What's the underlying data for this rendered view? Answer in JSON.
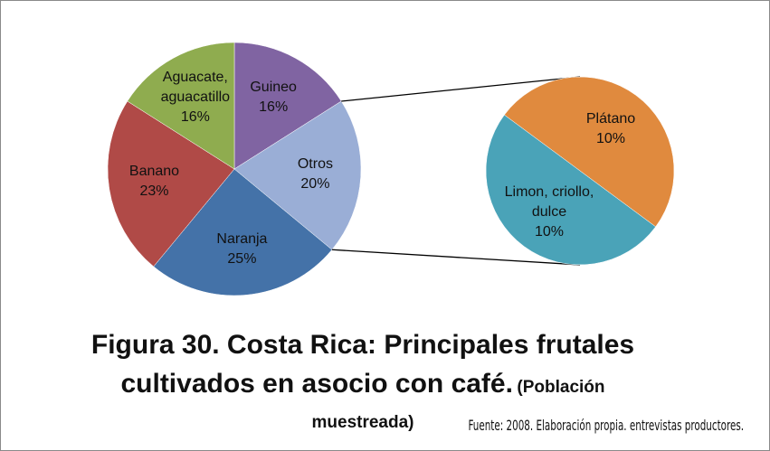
{
  "chart_data": {
    "type": "pie",
    "title": "Figura 30. Costa Rica: Principales frutales cultivados en asocio con café.",
    "subtitle": "(Población muestreada)",
    "source": "Fuente: 2008. Elaboración propia. entrevistas productores.",
    "categories": [
      "Guineo",
      "Otros",
      "Naranja",
      "Banano",
      "Aguacate, aguacatillo"
    ],
    "values": [
      16,
      20,
      25,
      23,
      16
    ],
    "value_labels": [
      "16%",
      "20%",
      "25%",
      "23%",
      "16%"
    ],
    "colors": [
      "#8064a2",
      "#9aaed6",
      "#4472a8",
      "#b04a47",
      "#8fac4f"
    ],
    "secondary": {
      "categories": [
        "Plátano",
        "Limon, criollo, dulce"
      ],
      "values": [
        10,
        10
      ],
      "value_labels": [
        "10%",
        "10%"
      ],
      "colors": [
        "#e08a3e",
        "#4aa3b8"
      ]
    }
  }
}
